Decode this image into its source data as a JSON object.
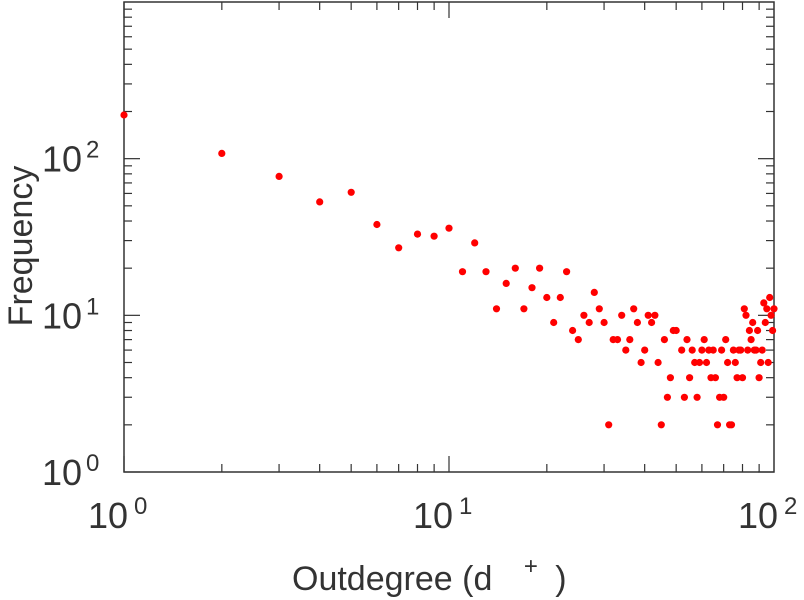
{
  "chart_data": {
    "type": "scatter",
    "title": "",
    "xlabel": "Outdegree (d",
    "xlabel_sup": "+",
    "xlabel_close": ")",
    "ylabel": "Frequency",
    "xscale": "log",
    "yscale": "log",
    "xlim": [
      1,
      100
    ],
    "ylim": [
      1,
      1000
    ],
    "x_ticks": [
      {
        "base": "10",
        "exp": "0"
      },
      {
        "base": "10",
        "exp": "1"
      },
      {
        "base": "10",
        "exp": "2"
      }
    ],
    "y_ticks": [
      {
        "base": "10",
        "exp": "0"
      },
      {
        "base": "10",
        "exp": "1"
      },
      {
        "base": "10",
        "exp": "2"
      }
    ],
    "grid": false,
    "marker_color": "#ff0000",
    "series": [
      {
        "points": [
          [
            1,
            190
          ],
          [
            2,
            108
          ],
          [
            3,
            77
          ],
          [
            4,
            53
          ],
          [
            5,
            61
          ],
          [
            6,
            38
          ],
          [
            7,
            27
          ],
          [
            8,
            33
          ],
          [
            9,
            32
          ],
          [
            10,
            36
          ],
          [
            11,
            19
          ],
          [
            12,
            29
          ],
          [
            13,
            19
          ],
          [
            14,
            11
          ],
          [
            15,
            16
          ],
          [
            16,
            20
          ],
          [
            17,
            11
          ],
          [
            18,
            15
          ],
          [
            19,
            20
          ],
          [
            20,
            13
          ],
          [
            21,
            9
          ],
          [
            22,
            13
          ],
          [
            23,
            19
          ],
          [
            24,
            8
          ],
          [
            25,
            7
          ],
          [
            26,
            10
          ],
          [
            27,
            9
          ],
          [
            28,
            14
          ],
          [
            29,
            11
          ],
          [
            30,
            9
          ],
          [
            31,
            2
          ],
          [
            32,
            7
          ],
          [
            33,
            7
          ],
          [
            34,
            10
          ],
          [
            35,
            6
          ],
          [
            36,
            7
          ],
          [
            37,
            11
          ],
          [
            38,
            9
          ],
          [
            39,
            5
          ],
          [
            40,
            6
          ],
          [
            41,
            10
          ],
          [
            42,
            9
          ],
          [
            43,
            10
          ],
          [
            44,
            5
          ],
          [
            45,
            2
          ],
          [
            46,
            7
          ],
          [
            47,
            3
          ],
          [
            48,
            4
          ],
          [
            49,
            8
          ],
          [
            50,
            8
          ],
          [
            52,
            6
          ],
          [
            53,
            3
          ],
          [
            54,
            7
          ],
          [
            55,
            4
          ],
          [
            56,
            6
          ],
          [
            57,
            5
          ],
          [
            58,
            3
          ],
          [
            59,
            5
          ],
          [
            60,
            6
          ],
          [
            61,
            7
          ],
          [
            62,
            5
          ],
          [
            63,
            6
          ],
          [
            64,
            4
          ],
          [
            65,
            6
          ],
          [
            66,
            4
          ],
          [
            67,
            2
          ],
          [
            68,
            3
          ],
          [
            69,
            6
          ],
          [
            70,
            3
          ],
          [
            71,
            7
          ],
          [
            72,
            5
          ],
          [
            73,
            2
          ],
          [
            74,
            2
          ],
          [
            75,
            6
          ],
          [
            76,
            5
          ],
          [
            77,
            4
          ],
          [
            78,
            6
          ],
          [
            79,
            6
          ],
          [
            80,
            4
          ],
          [
            81,
            11
          ],
          [
            82,
            10
          ],
          [
            83,
            6
          ],
          [
            84,
            8
          ],
          [
            85,
            7
          ],
          [
            86,
            9
          ],
          [
            87,
            6
          ],
          [
            88,
            6
          ],
          [
            89,
            8
          ],
          [
            90,
            4
          ],
          [
            91,
            5
          ],
          [
            92,
            6
          ],
          [
            93,
            12
          ],
          [
            94,
            9
          ],
          [
            95,
            11
          ],
          [
            96,
            5
          ],
          [
            97,
            13
          ],
          [
            98,
            10
          ],
          [
            99,
            8
          ],
          [
            100,
            11
          ]
        ]
      }
    ]
  }
}
